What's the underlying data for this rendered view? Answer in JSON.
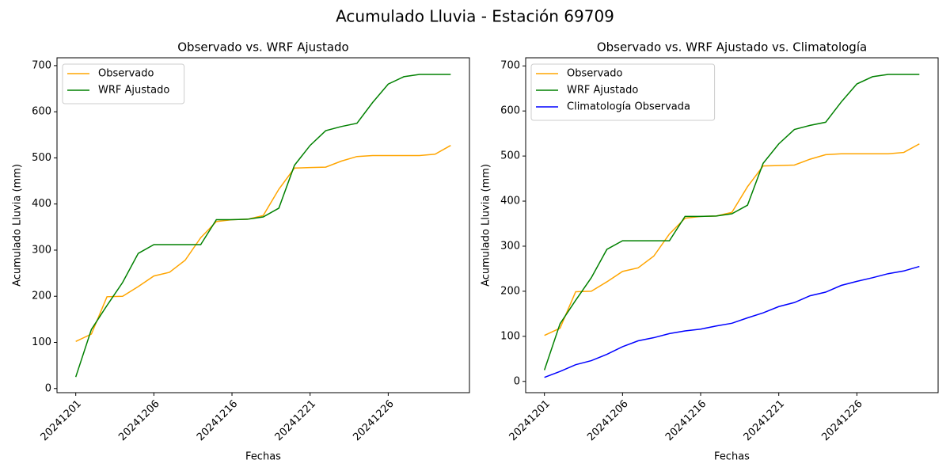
{
  "suptitle": "Acumulado Lluvia - Estación 69709",
  "chart_data": [
    {
      "type": "line",
      "title": "Observado vs. WRF Ajustado",
      "xlabel": "Fechas",
      "ylabel": "Acumulado Lluvia (mm)",
      "categories": [
        "20241201",
        null,
        null,
        null,
        null,
        "20241206",
        null,
        null,
        null,
        null,
        "20241216",
        null,
        null,
        null,
        null,
        "20241221",
        null,
        null,
        null,
        null,
        "20241226",
        null,
        null,
        null,
        null
      ],
      "series": [
        {
          "name": "Observado",
          "color": "orange",
          "values": [
            102,
            118,
            199,
            200,
            221,
            244,
            252,
            278,
            327,
            362,
            366,
            367,
            375,
            432,
            478,
            479,
            480,
            493,
            503,
            505,
            505,
            505,
            505,
            508,
            527
          ]
        },
        {
          "name": "WRF Ajustado",
          "color": "green",
          "values": [
            25,
            128,
            180,
            230,
            293,
            312,
            312,
            312,
            312,
            366,
            366,
            367,
            372,
            391,
            484,
            527,
            559,
            568,
            575,
            620,
            660,
            676,
            681,
            681,
            681
          ]
        }
      ],
      "ylim": [
        -9,
        717
      ],
      "yticks": [
        0,
        100,
        200,
        300,
        400,
        500,
        600,
        700
      ],
      "legend": "upper left"
    },
    {
      "type": "line",
      "title": "Observado vs. WRF Ajustado vs. Climatología",
      "xlabel": "Fechas",
      "ylabel": "Acumulado Lluvia (mm)",
      "categories": [
        "20241201",
        null,
        null,
        null,
        null,
        "20241206",
        null,
        null,
        null,
        null,
        "20241216",
        null,
        null,
        null,
        null,
        "20241221",
        null,
        null,
        null,
        null,
        "20241226",
        null,
        null,
        null,
        null
      ],
      "series": [
        {
          "name": "Observado",
          "color": "orange",
          "values": [
            102,
            118,
            199,
            200,
            221,
            244,
            252,
            278,
            327,
            362,
            366,
            367,
            375,
            432,
            478,
            479,
            480,
            493,
            503,
            505,
            505,
            505,
            505,
            508,
            527
          ]
        },
        {
          "name": "WRF Ajustado",
          "color": "green",
          "values": [
            25,
            128,
            180,
            230,
            293,
            312,
            312,
            312,
            312,
            366,
            366,
            367,
            372,
            391,
            484,
            527,
            559,
            568,
            575,
            620,
            660,
            676,
            681,
            681,
            681
          ]
        },
        {
          "name": "Climatología Observada",
          "color": "blue",
          "values": [
            9,
            22,
            37,
            46,
            60,
            77,
            90,
            97,
            106,
            112,
            116,
            123,
            129,
            141,
            152,
            166,
            175,
            190,
            198,
            213,
            222,
            230,
            239,
            245,
            255
          ]
        }
      ],
      "ylim": [
        -25,
        718
      ],
      "yticks": [
        0,
        100,
        200,
        300,
        400,
        500,
        600,
        700
      ],
      "legend": "upper left"
    }
  ]
}
